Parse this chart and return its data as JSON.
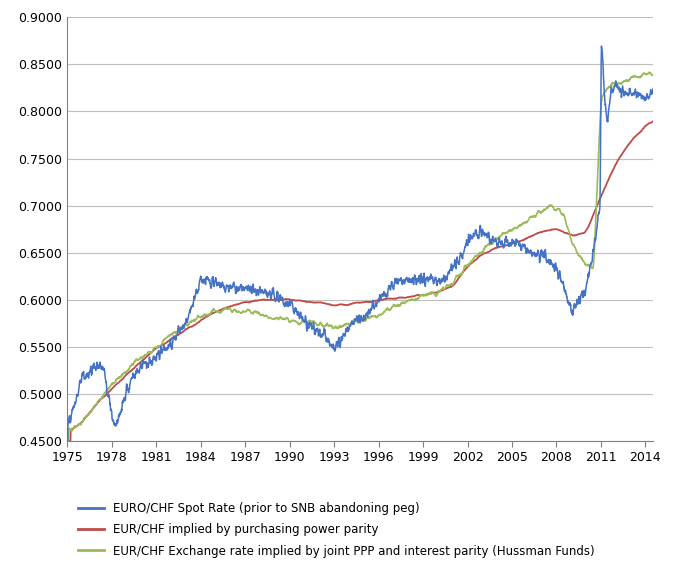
{
  "title": "",
  "xlim": [
    1975,
    2014.5
  ],
  "ylim": [
    0.45,
    0.9
  ],
  "yticks": [
    0.45,
    0.5,
    0.55,
    0.6,
    0.65,
    0.7,
    0.75,
    0.8,
    0.85,
    0.9
  ],
  "xticks": [
    1975,
    1978,
    1981,
    1984,
    1987,
    1990,
    1993,
    1996,
    1999,
    2002,
    2005,
    2008,
    2011,
    2014
  ],
  "legend": [
    "EURO/CHF Spot Rate (prior to SNB abandoning peg)",
    "EUR/CHF implied by purchasing power parity",
    "EUR/CHF Exchange rate implied by joint PPP and interest parity (Hussman Funds)"
  ],
  "colors": {
    "spot": "#4472C4",
    "ppp": "#BE4B48",
    "joint": "#9BBB59"
  },
  "background": "#FFFFFF",
  "grid_color": "#BFBFBF"
}
